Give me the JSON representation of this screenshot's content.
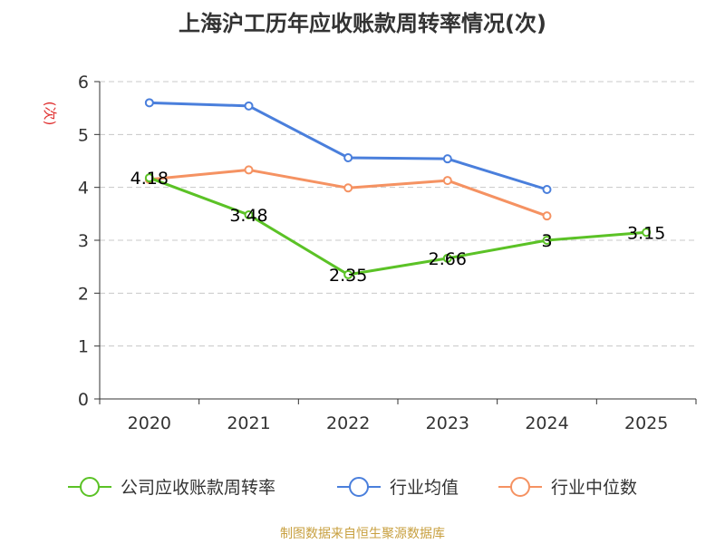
{
  "chart_data": {
    "type": "line",
    "title": "上海沪工历年应收账款周转率情况(次)",
    "ylabel": "(次)",
    "xlabel": "",
    "categories": [
      "2020",
      "2021",
      "2022",
      "2023",
      "2024",
      "2025"
    ],
    "yticks": [
      "0",
      "1",
      "2",
      "3",
      "4",
      "5",
      "6"
    ],
    "ylim": [
      0,
      6
    ],
    "grid": true,
    "legend_position": "bottom",
    "series": [
      {
        "name": "公司应收账款周转率",
        "color": "#5bc226",
        "values": [
          4.18,
          3.48,
          2.35,
          2.66,
          3.0,
          3.15
        ],
        "labels": [
          "4.18",
          "3.48",
          "2.35",
          "2.66",
          "3",
          "3.15"
        ]
      },
      {
        "name": "行业均值",
        "color": "#4a7fdc",
        "values": [
          5.6,
          5.54,
          4.56,
          4.54,
          3.96,
          null
        ]
      },
      {
        "name": "行业中位数",
        "color": "#f59262",
        "values": [
          4.15,
          4.33,
          3.99,
          4.13,
          3.46,
          null
        ]
      }
    ]
  },
  "ylabel_color": "#e03030",
  "source": "制图数据来自恒生聚源数据库"
}
